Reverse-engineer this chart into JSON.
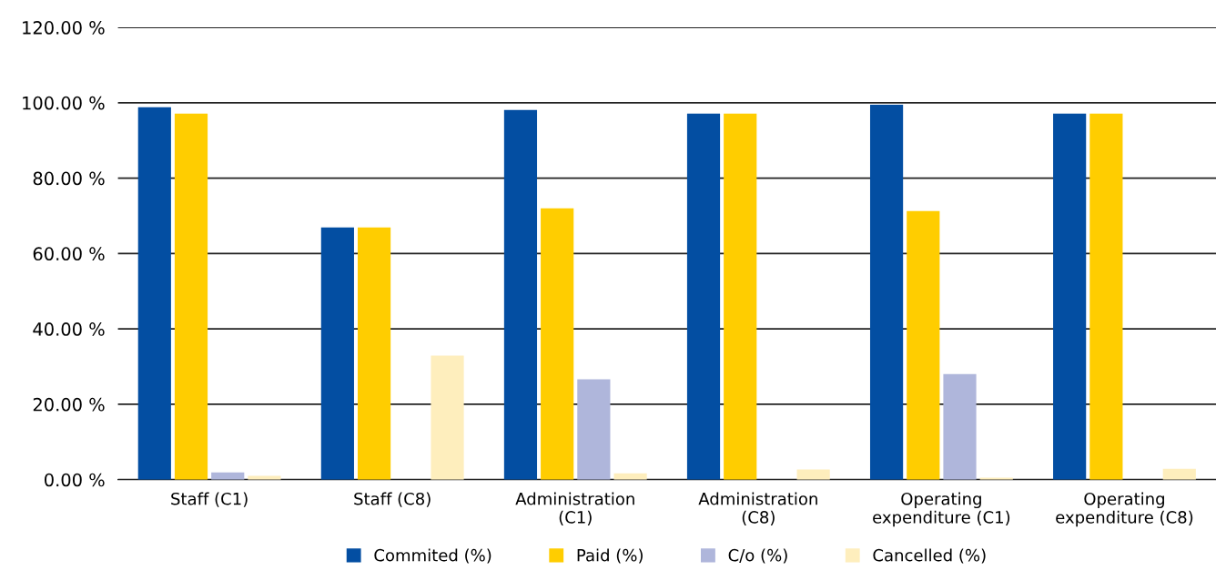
{
  "chart_data": {
    "type": "bar",
    "categories": [
      "Staff (C1)",
      "Staff (C8)",
      "Administration\n(C1)",
      "Administration\n(C8)",
      "Operating\nexpenditure (C1)",
      "Operating\nexpenditure (C8)"
    ],
    "series": [
      {
        "name": "Commited (%)",
        "color": "#034ea2",
        "values": [
          98.8,
          66.9,
          98.1,
          97.1,
          99.5,
          97.1
        ]
      },
      {
        "name": "Paid (%)",
        "color": "#ffcd00",
        "values": [
          97.1,
          66.9,
          72.0,
          97.1,
          71.3,
          97.1
        ]
      },
      {
        "name": "C/o (%)",
        "color": "#afb6db",
        "values": [
          1.9,
          0,
          26.6,
          0,
          28.0,
          0
        ]
      },
      {
        "name": "Cancelled (%)",
        "color": "#feeebd",
        "values": [
          1.0,
          32.9,
          1.7,
          2.7,
          0.5,
          2.9
        ]
      }
    ],
    "ylim": [
      0,
      120
    ],
    "yticks": [
      {
        "value": 0,
        "label": "0.00 %"
      },
      {
        "value": 20,
        "label": "20.00 %"
      },
      {
        "value": 40,
        "label": "40.00 %"
      },
      {
        "value": 60,
        "label": "60.00 %"
      },
      {
        "value": 80,
        "label": "80.00 %"
      },
      {
        "value": 100,
        "label": "100.00 %"
      },
      {
        "value": 120,
        "label": "120.00 %"
      }
    ],
    "grid": "y",
    "legend": "bottom"
  }
}
